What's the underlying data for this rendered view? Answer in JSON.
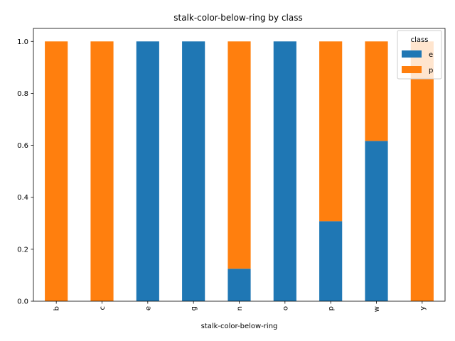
{
  "chart_data": {
    "type": "bar",
    "stacked": true,
    "title": "stalk-color-below-ring by class",
    "xlabel": "stalk-color-below-ring",
    "ylabel": "",
    "categories": [
      "b",
      "c",
      "e",
      "g",
      "n",
      "o",
      "p",
      "w",
      "y"
    ],
    "series": [
      {
        "name": "e",
        "color": "#1f77b4",
        "values": [
          0,
          0,
          1,
          1,
          0.125,
          1,
          0.308,
          0.617,
          0
        ]
      },
      {
        "name": "p",
        "color": "#ff7f0e",
        "values": [
          1,
          1,
          0,
          0,
          0.875,
          0,
          0.692,
          0.383,
          1
        ]
      }
    ],
    "ylim": [
      0,
      1.05
    ],
    "yticks": [
      "0.0",
      "0.2",
      "0.4",
      "0.6",
      "0.8",
      "1.0"
    ],
    "grid": false,
    "legend": {
      "title": "class",
      "position": "top-right"
    }
  }
}
